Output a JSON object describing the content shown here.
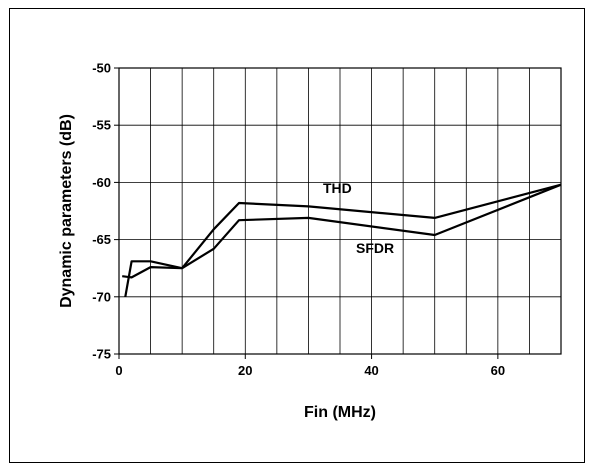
{
  "chart_data": {
    "type": "line",
    "title": "",
    "xlabel": "Fin (MHz)",
    "ylabel": "Dynamic parameters (dB)",
    "xlim": [
      0,
      70
    ],
    "ylim": [
      -75,
      -50
    ],
    "x_ticks": [
      0,
      20,
      40,
      60
    ],
    "x_tick_labels": [
      "0",
      "20",
      "40",
      "60"
    ],
    "y_ticks": [
      -75,
      -70,
      -65,
      -60,
      -55,
      -50
    ],
    "y_tick_labels": [
      "-75",
      "-70",
      "-65",
      "-60",
      "-55",
      "-50"
    ],
    "x_grid_step": 5,
    "grid": true,
    "legend": "inline labels",
    "series": [
      {
        "name": "THD",
        "x": [
          1,
          2,
          5,
          10,
          15,
          19,
          30,
          50,
          70
        ],
        "y": [
          -70.0,
          -66.9,
          -66.9,
          -67.5,
          -64.1,
          -61.8,
          -62.1,
          -63.1,
          -60.2
        ]
      },
      {
        "name": "SFDR",
        "x": [
          0.5,
          2,
          5,
          10,
          15,
          19,
          30,
          50,
          70
        ],
        "y": [
          -68.2,
          -68.3,
          -67.4,
          -67.5,
          -65.8,
          -63.3,
          -63.1,
          -64.6,
          -60.2
        ]
      }
    ]
  }
}
